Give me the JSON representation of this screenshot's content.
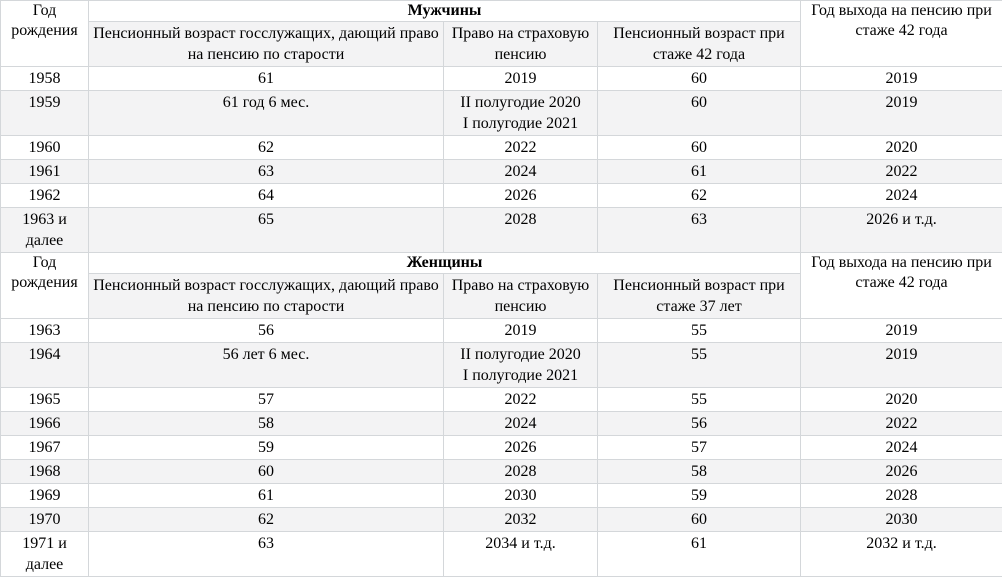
{
  "colors": {
    "border": "#d4d7da",
    "stripe": "#f3f3f4",
    "text": "#000000",
    "background": "#ffffff"
  },
  "chart_data": [
    {
      "type": "table",
      "title": "Мужчины",
      "corner_header": "Год рождения",
      "right_header": "Год выхода на пенсию при стаже 42 года",
      "columns": [
        "Пенсионный возраст госслужащих, дающий право на пенсию по старости",
        "Право на страховую пенсию",
        "Пенсионный возраст при стаже 42 года"
      ],
      "rows": [
        [
          "1958",
          "61",
          "2019",
          "60",
          "2019"
        ],
        [
          "1959",
          "61 год 6 мес.",
          "II полугодие 2020\nI полугодие 2021",
          "60",
          "2019"
        ],
        [
          "1960",
          "62",
          "2022",
          "60",
          "2020"
        ],
        [
          "1961",
          "63",
          "2024",
          "61",
          "2022"
        ],
        [
          "1962",
          "64",
          "2026",
          "62",
          "2024"
        ],
        [
          "1963 и\nдалее",
          "65",
          "2028",
          "63",
          "2026 и т.д."
        ]
      ]
    },
    {
      "type": "table",
      "title": "Женщины",
      "corner_header": "Год рождения",
      "right_header": "Год выхода на пенсию при стаже 42 года",
      "columns": [
        "Пенсионный возраст госслужащих, дающий право на пенсию по старости",
        "Право на страховую пенсию",
        "Пенсионный возраст при стаже 37 лет"
      ],
      "rows": [
        [
          "1963",
          "56",
          "2019",
          "55",
          "2019"
        ],
        [
          "1964",
          "56 лет 6 мес.",
          "II полугодие 2020\nI полугодие 2021",
          "55",
          "2019"
        ],
        [
          "1965",
          "57",
          "2022",
          "55",
          "2020"
        ],
        [
          "1966",
          "58",
          "2024",
          "56",
          "2022"
        ],
        [
          "1967",
          "59",
          "2026",
          "57",
          "2024"
        ],
        [
          "1968",
          "60",
          "2028",
          "58",
          "2026"
        ],
        [
          "1969",
          "61",
          "2030",
          "59",
          "2028"
        ],
        [
          "1970",
          "62",
          "2032",
          "60",
          "2030"
        ],
        [
          "1971 и\nдалее",
          "63",
          "2034 и т.д.",
          "61",
          "2032 и т.д."
        ]
      ]
    }
  ]
}
